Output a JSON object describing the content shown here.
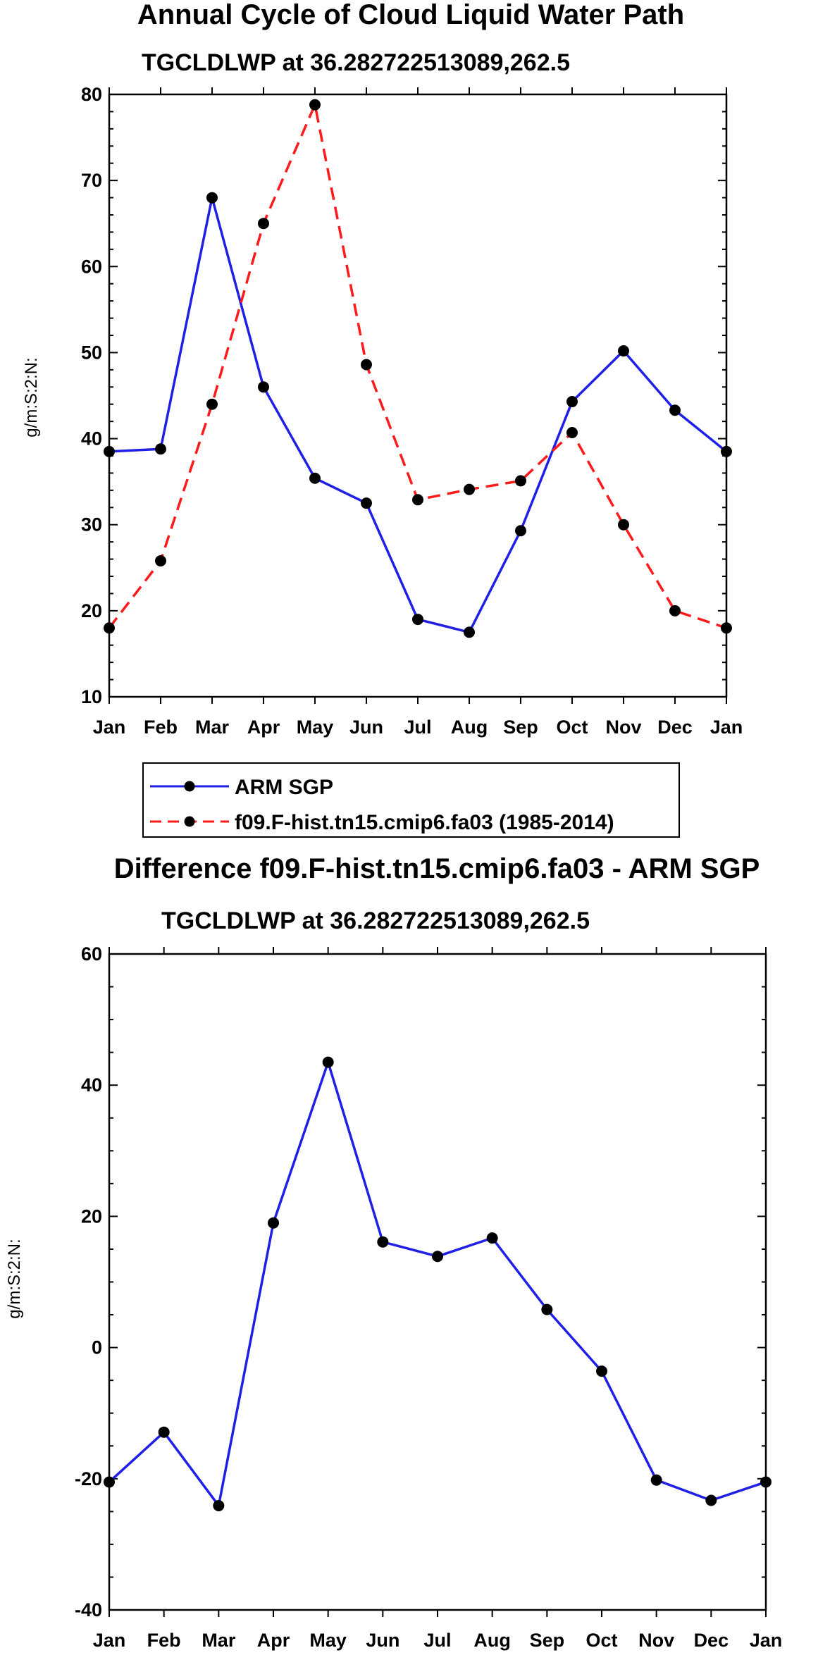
{
  "chart_data": [
    {
      "type": "line",
      "title": "Annual Cycle of Cloud Liquid Water Path",
      "subtitle": "TGCLDLWP at 36.282722513089,262.5",
      "xlabel": "",
      "ylabel": "g/m:S:2:N:",
      "categories": [
        "Jan",
        "Feb",
        "Mar",
        "Apr",
        "May",
        "Jun",
        "Jul",
        "Aug",
        "Sep",
        "Oct",
        "Nov",
        "Dec",
        "Jan"
      ],
      "ylim": [
        10,
        80
      ],
      "yticks": [
        "10",
        "20",
        "30",
        "40",
        "50",
        "60",
        "70",
        "80"
      ],
      "series": [
        {
          "name": "ARM SGP",
          "color": "#1f1fe6",
          "dash": "solid",
          "values": [
            38.5,
            38.8,
            68,
            46,
            35.4,
            32.5,
            19,
            17.5,
            29.3,
            44.3,
            50.2,
            43.3,
            38.5
          ]
        },
        {
          "name": "f09.F-hist.tn15.cmip6.fa03 (1985-2014)",
          "color": "#ff1a1a",
          "dash": "dashed",
          "values": [
            18,
            25.8,
            44,
            65,
            78.8,
            48.6,
            32.9,
            34.1,
            35.1,
            40.7,
            30,
            20,
            18
          ]
        }
      ],
      "legend": {
        "position": "bottom-left",
        "entries": [
          "ARM SGP",
          "f09.F-hist.tn15.cmip6.fa03 (1985-2014)"
        ]
      }
    },
    {
      "type": "line",
      "title": "Difference f09.F-hist.tn15.cmip6.fa03 - ARM SGP",
      "subtitle": "TGCLDLWP at 36.282722513089,262.5",
      "xlabel": "",
      "ylabel": "g/m:S:2:N:",
      "categories": [
        "Jan",
        "Feb",
        "Mar",
        "Apr",
        "May",
        "Jun",
        "Jul",
        "Aug",
        "Sep",
        "Oct",
        "Nov",
        "Dec",
        "Jan"
      ],
      "ylim": [
        -40,
        60
      ],
      "yticks": [
        "-40",
        "-20",
        "0",
        "20",
        "40",
        "60"
      ],
      "series": [
        {
          "name": "Difference",
          "color": "#1f1fe6",
          "dash": "solid",
          "values": [
            -20.5,
            -12.9,
            -24.1,
            19,
            43.5,
            16.1,
            13.9,
            16.7,
            5.8,
            -3.6,
            -20.2,
            -23.3,
            -20.5
          ]
        }
      ]
    }
  ]
}
